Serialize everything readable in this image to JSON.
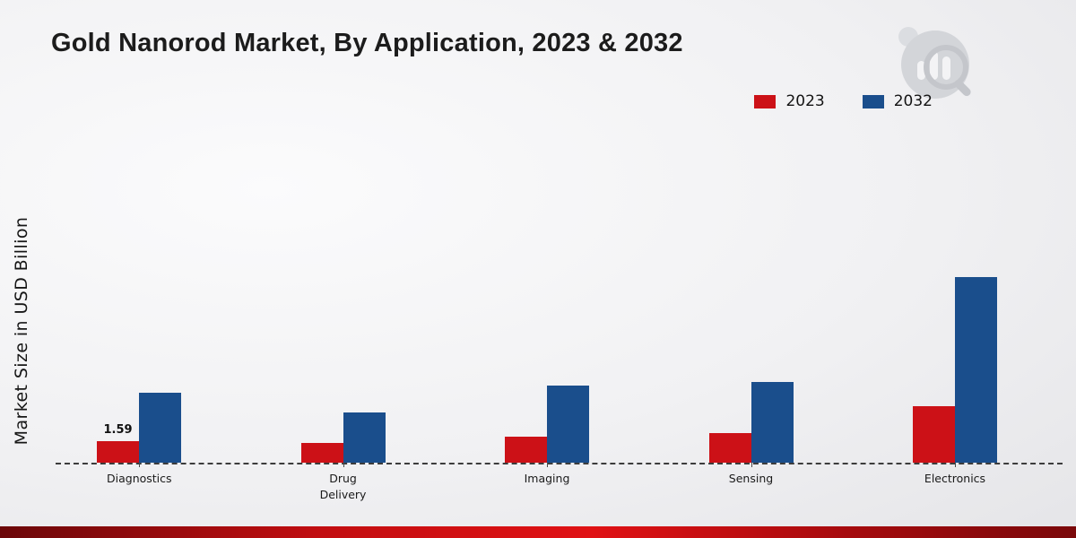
{
  "page": {
    "title": "Gold Nanorod Market, By Application, 2023 & 2032",
    "ylabel": "Market Size in USD Billion"
  },
  "colors": {
    "series_2023": "#cc1117",
    "series_2032": "#1a4e8c",
    "footer_stripe_red": "#c20d10",
    "baseline": "#3c3c3c"
  },
  "chart_data": {
    "type": "bar",
    "title": "Gold Nanorod Market, By Application, 2023 & 2032",
    "ylabel": "Market Size in USD Billion",
    "xlabel": "",
    "categories": [
      "Diagnostics",
      "Drug Delivery",
      "Imaging",
      "Sensing",
      "Electronics"
    ],
    "series": [
      {
        "name": "2023",
        "color": "#cc1117",
        "values": [
          1.59,
          1.45,
          1.9,
          2.2,
          4.2
        ]
      },
      {
        "name": "2032",
        "color": "#1a4e8c",
        "values": [
          5.2,
          3.7,
          5.7,
          6.0,
          13.8
        ]
      }
    ],
    "value_labels": [
      {
        "series": "2023",
        "category": "Diagnostics",
        "text": "1.59"
      }
    ],
    "ylim": [
      0,
      14
    ],
    "grid": false,
    "baseline_style": "dashed",
    "legend_position": "top-right"
  },
  "branding": {
    "logo": "bar-chart-magnifier-logo"
  }
}
